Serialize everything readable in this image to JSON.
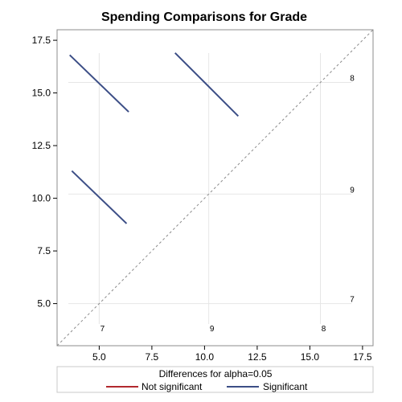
{
  "colors": {
    "not_significant": "#b2292e",
    "significant": "#3c4e86",
    "diagonal": "#8c8c8c",
    "reference_line": "#e6e6e6",
    "frame": "#8c8c8c"
  },
  "chart_data": {
    "type": "line",
    "title": "Spending Comparisons for Grade",
    "xlabel": "",
    "ylabel": "",
    "xlim": [
      3,
      18
    ],
    "ylim": [
      3,
      18
    ],
    "x_ticks": [
      "5.0",
      "7.5",
      "10.0",
      "12.5",
      "15.0",
      "17.5"
    ],
    "y_ticks": [
      "5.0",
      "7.5",
      "10.0",
      "12.5",
      "15.0",
      "17.5"
    ],
    "grid": false,
    "diagonal": {
      "style": "dashed",
      "from": [
        3,
        3
      ],
      "to": [
        18,
        18
      ]
    },
    "grade_means": [
      {
        "grade": "7",
        "value": 5.0
      },
      {
        "grade": "9",
        "value": 10.2
      },
      {
        "grade": "8",
        "value": 15.5
      }
    ],
    "comparisons": [
      {
        "pair": "8 - 7",
        "significant": true,
        "x": [
          3.6,
          6.4
        ],
        "y": [
          16.8,
          14.1
        ]
      },
      {
        "pair": "8 - 9",
        "significant": true,
        "x": [
          8.6,
          11.6
        ],
        "y": [
          16.9,
          13.9
        ]
      },
      {
        "pair": "9 - 7",
        "significant": true,
        "x": [
          3.7,
          6.3
        ],
        "y": [
          11.3,
          8.8
        ]
      }
    ],
    "legend": {
      "title": "Differences for alpha=0.05",
      "placement": "bottom",
      "entries": [
        {
          "label": "Not significant",
          "color": "#b2292e"
        },
        {
          "label": "Significant",
          "color": "#3c4e86"
        }
      ]
    }
  }
}
